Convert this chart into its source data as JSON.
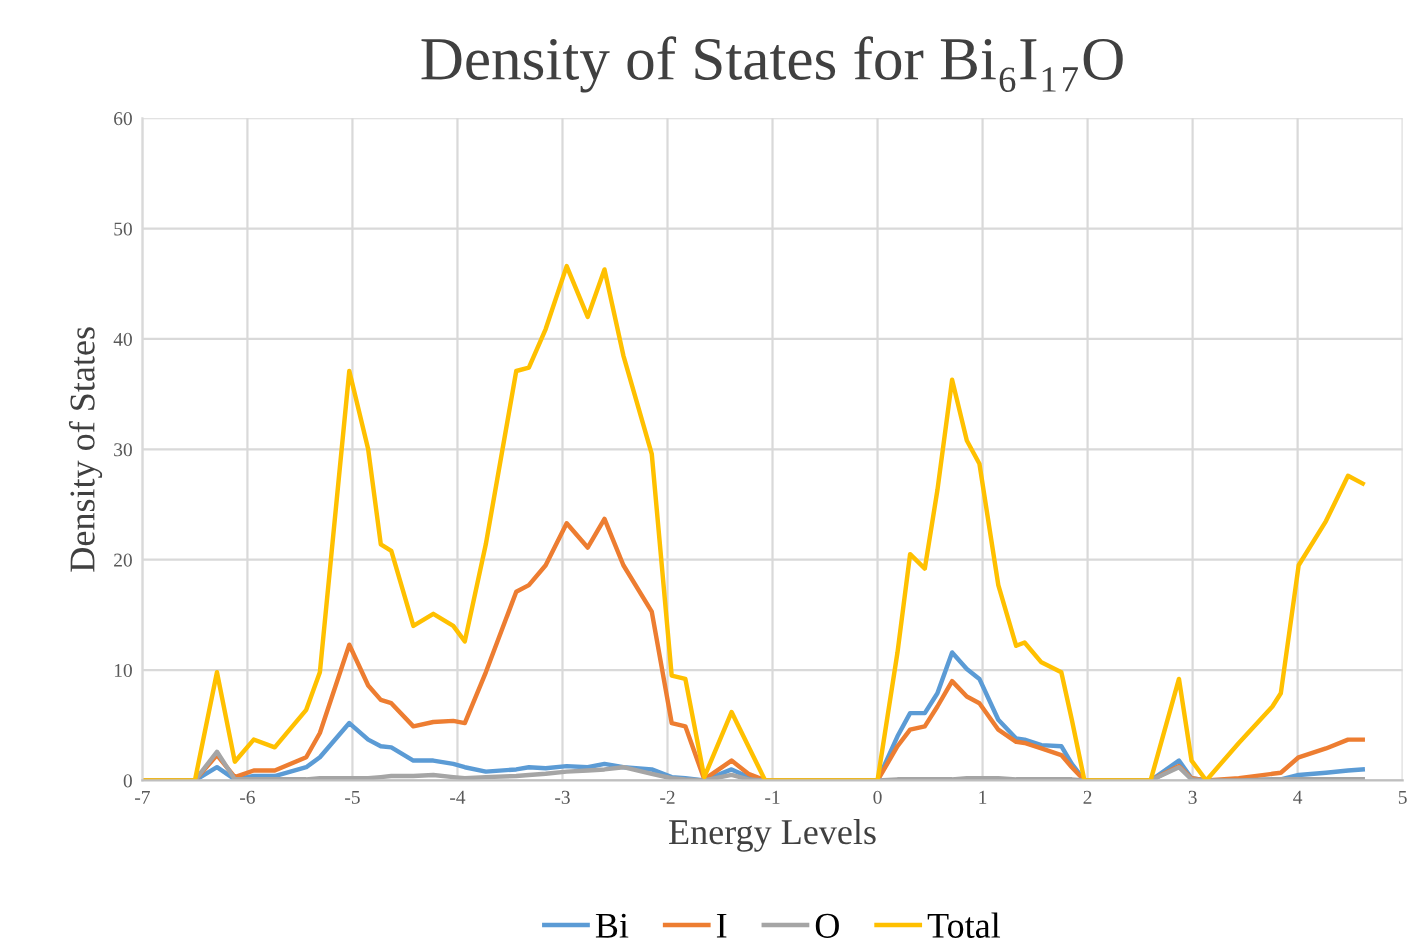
{
  "chart_data": {
    "type": "line",
    "title": "Density of States for Bi₆I₁₇O",
    "xlabel": "Energy Levels",
    "ylabel": "Density of States",
    "x": [
      -7,
      -6.5,
      -6.29,
      -6.12,
      -5.94,
      -5.74,
      -5.44,
      -5.31,
      -5.03,
      -4.85,
      -4.73,
      -4.63,
      -4.42,
      -4.23,
      -4.04,
      -3.93,
      -3.73,
      -3.44,
      -3.32,
      -3.16,
      -2.96,
      -2.76,
      -2.6,
      -2.42,
      -2.15,
      -1.96,
      -1.83,
      -1.65,
      -1.39,
      -1.23,
      -1.07,
      0,
      0.19,
      0.31,
      0.45,
      0.57,
      0.71,
      0.85,
      0.97,
      1.15,
      1.32,
      1.4,
      1.56,
      1.75,
      1.85,
      1.97,
      2.6,
      2.87,
      2.99,
      3.13,
      3.44,
      3.76,
      3.84,
      4.01,
      4.27,
      4.48,
      4.62
    ],
    "series": [
      {
        "name": "Bi",
        "color": "#5b9bd5",
        "values": [
          0,
          0,
          1.2,
          0.1,
          0.4,
          0.4,
          1.2,
          2.1,
          5.2,
          3.7,
          3.1,
          3.0,
          1.8,
          1.8,
          1.5,
          1.2,
          0.8,
          1.0,
          1.2,
          1.1,
          1.3,
          1.2,
          1.5,
          1.2,
          1.0,
          0.3,
          0.2,
          0,
          1.0,
          0.3,
          0,
          0,
          4.0,
          6.1,
          6.1,
          7.9,
          11.6,
          10.1,
          9.2,
          5.5,
          3.8,
          3.7,
          3.2,
          3.1,
          1.5,
          0,
          0,
          1.8,
          0.2,
          0,
          0,
          0.1,
          0.1,
          0.5,
          0.7,
          0.9,
          1.0
        ]
      },
      {
        "name": "I",
        "color": "#ed7d31",
        "values": [
          0,
          0,
          2.3,
          0.3,
          0.9,
          0.9,
          2.1,
          4.3,
          12.3,
          8.6,
          7.3,
          7.0,
          4.9,
          5.3,
          5.4,
          5.2,
          9.8,
          17.1,
          17.7,
          19.5,
          23.3,
          21.1,
          23.7,
          19.5,
          15.3,
          5.2,
          4.9,
          0.1,
          1.8,
          0.6,
          0,
          0,
          3.1,
          4.6,
          4.9,
          6.7,
          9.0,
          7.6,
          7.0,
          4.6,
          3.5,
          3.4,
          2.9,
          2.3,
          1.2,
          0,
          0,
          1.3,
          0.2,
          0,
          0.2,
          0.6,
          0.7,
          2.1,
          2.9,
          3.7,
          3.7
        ]
      },
      {
        "name": "O",
        "color": "#a5a5a5",
        "values": [
          0,
          0,
          2.6,
          0.1,
          0.1,
          0.1,
          0.1,
          0.2,
          0.2,
          0.2,
          0.3,
          0.4,
          0.4,
          0.5,
          0.3,
          0.2,
          0.3,
          0.4,
          0.5,
          0.6,
          0.8,
          0.9,
          1.0,
          1.2,
          0.6,
          0.2,
          0.1,
          0,
          0.5,
          0.1,
          0,
          0,
          0.1,
          0.1,
          0.1,
          0.1,
          0.1,
          0.2,
          0.2,
          0.2,
          0.1,
          0.1,
          0.1,
          0.1,
          0.1,
          0,
          0,
          1.2,
          0.1,
          0,
          0,
          0.1,
          0.1,
          0.1,
          0.1,
          0.1,
          0.1
        ]
      },
      {
        "name": "Total",
        "color": "#ffc000",
        "values": [
          0,
          0,
          9.8,
          1.7,
          3.7,
          3.0,
          6.4,
          9.8,
          37.1,
          30,
          21.4,
          20.8,
          14.0,
          15.1,
          14.0,
          12.6,
          21.4,
          37.1,
          37.4,
          40.9,
          46.6,
          42,
          46.3,
          38.5,
          29.6,
          9.5,
          9.2,
          0.3,
          6.2,
          3.1,
          0,
          0,
          11.6,
          20.5,
          19.2,
          26.3,
          36.3,
          30.8,
          28.7,
          17.7,
          12.2,
          12.5,
          10.7,
          9.8,
          5.5,
          0,
          0,
          9.2,
          1.8,
          0,
          3.4,
          6.7,
          7.9,
          19.5,
          23.5,
          27.6,
          26.9
        ]
      }
    ],
    "xlim": [
      -7,
      5
    ],
    "xticks": [
      -7,
      -6,
      -5,
      -4,
      -3,
      -2,
      -1,
      0,
      1,
      2,
      3,
      4,
      5
    ],
    "ylim": [
      0,
      60
    ],
    "yticks": [
      0,
      10,
      20,
      30,
      40,
      50,
      60
    ],
    "grid": true,
    "legend": "bottom",
    "marker": "none",
    "line_style": "solid"
  }
}
